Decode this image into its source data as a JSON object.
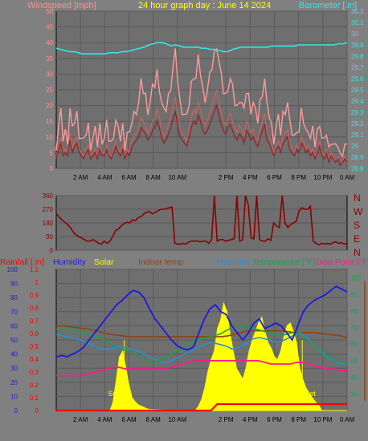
{
  "title": "24 hour graph day : June 14 2024",
  "colors": {
    "background": "#808080",
    "plot_bg": "#6f6f6f",
    "title": "#ffff00",
    "wind_label": "#ff9090",
    "wind_light": "#ff9a9a",
    "wind_mid": "#d06060",
    "wind_dark": "#8a2c2c",
    "baro": "#33e6e6",
    "winddir": "#8b0000",
    "rain": "#ff0000",
    "humidity": "#1a1ae6",
    "solar": "#ffff00",
    "indoor": "#8b4513",
    "humidex": "#2a8fd6",
    "temperature": "#16a34a",
    "dewpoint": "#ff1a8c",
    "grid": "#5a5a5a"
  },
  "x_ticks": [
    "2 AM",
    "4 AM",
    "6 AM",
    "8 AM",
    "10 AM",
    "2 PM",
    "4 PM",
    "6 PM",
    "8 PM",
    "10 PM",
    "0 AM"
  ],
  "chart_data": [
    {
      "type": "line",
      "title": "",
      "series": [
        {
          "name": "Windspeed [mph]",
          "axis": "left",
          "values": [
            3,
            6,
            8,
            4,
            5,
            4,
            9,
            5,
            7,
            8,
            5,
            4,
            3,
            5,
            6,
            3,
            4,
            5,
            3,
            6,
            4,
            4,
            6,
            4,
            3,
            5,
            7,
            5,
            4,
            6,
            3,
            5,
            4,
            7,
            8,
            9,
            10,
            13,
            12,
            11,
            9,
            10,
            12,
            13,
            15,
            13,
            10,
            8,
            9,
            11,
            13,
            16,
            18,
            14,
            10,
            9,
            8,
            7,
            10,
            13,
            15,
            14,
            17,
            15,
            12,
            11,
            12,
            14,
            16,
            18,
            20,
            17,
            14,
            12,
            11,
            13,
            14,
            12,
            10,
            9,
            11,
            10,
            8,
            12,
            11,
            9,
            10,
            8,
            7,
            10,
            12,
            14,
            9,
            8,
            6,
            4,
            6,
            7,
            5,
            8,
            9,
            10,
            6,
            5,
            4,
            6,
            5,
            8,
            7,
            5,
            6,
            4,
            5,
            3,
            5,
            7,
            4,
            3,
            5,
            2,
            4,
            3,
            2,
            3,
            1,
            2,
            3,
            2
          ]
        },
        {
          "name": "Barometer [.in]",
          "axis": "right",
          "values": [
            29.87,
            29.86,
            29.85,
            29.84,
            29.84,
            29.83,
            29.82,
            29.82,
            29.82,
            29.82,
            29.82,
            29.82,
            29.83,
            29.83,
            29.83,
            29.84,
            29.84,
            29.85,
            29.86,
            29.87,
            29.88,
            29.9,
            29.91,
            29.92,
            29.92,
            29.91,
            29.89,
            29.9,
            29.89,
            29.88,
            29.88,
            29.88,
            29.88,
            29.87,
            29.87,
            29.86,
            29.86,
            29.85,
            29.84,
            29.84,
            29.86,
            29.87,
            29.88,
            29.88,
            29.88,
            29.88,
            29.88,
            29.88,
            29.88,
            29.89,
            29.89,
            29.89,
            29.89,
            29.89,
            29.89,
            29.9,
            29.9,
            29.9,
            29.9,
            29.9,
            29.9,
            29.9,
            29.9,
            29.9,
            29.91,
            29.91,
            29.92
          ]
        }
      ],
      "ylabel_left": "Windspeed [mph]",
      "ylabel_right": "Barometer [.in]",
      "ylim_left": [
        0,
        50
      ],
      "ylim_right": [
        28.8,
        30.2
      ]
    },
    {
      "type": "line",
      "title": "",
      "series": [
        {
          "name": "Wind direction",
          "values": [
            240,
            220,
            200,
            185,
            170,
            150,
            120,
            100,
            90,
            80,
            70,
            60,
            60,
            70,
            60,
            45,
            40,
            60,
            45,
            60,
            90,
            130,
            140,
            160,
            175,
            185,
            180,
            200,
            195,
            215,
            220,
            240,
            250,
            255,
            240,
            250,
            260,
            270,
            270,
            275,
            280,
            285,
            45,
            40,
            40,
            45,
            40,
            55,
            60,
            60,
            60,
            55,
            60,
            60,
            45,
            70,
            360,
            60,
            70,
            70,
            60,
            65,
            70,
            75,
            360,
            60,
            70,
            360,
            300,
            80,
            75,
            360,
            70,
            60,
            60,
            75,
            65,
            180,
            160,
            150,
            360,
            180,
            150,
            170,
            180,
            190,
            260,
            280,
            270,
            270,
            290,
            60,
            45,
            35,
            45,
            40,
            45,
            40,
            50,
            55,
            45,
            50,
            40,
            45
          ]
        }
      ],
      "y_ticks": [
        "360",
        "270",
        "180",
        "90",
        "0"
      ],
      "compass": [
        "N",
        "W",
        "S",
        "E",
        "N"
      ],
      "ylim": [
        0,
        360
      ]
    },
    {
      "type": "line",
      "title": "",
      "series": [
        {
          "name": "Rainfall [.in]",
          "values": [
            0,
            0,
            0,
            0,
            0,
            0,
            0,
            0,
            0,
            0,
            0,
            0,
            0,
            0,
            0,
            0,
            0,
            0,
            0,
            0,
            0,
            0,
            0,
            0,
            0,
            0,
            0.05,
            0.05,
            0.05,
            0.05,
            0.05,
            0.05,
            0.05,
            0.05,
            0.05,
            0.05,
            0.05,
            0.05,
            0.05,
            0.05,
            0.05,
            0.05,
            0.05,
            0.05,
            0.05,
            0.05,
            0.05,
            0.05
          ]
        },
        {
          "name": "Humidity",
          "values": [
            38,
            39,
            38,
            40,
            42,
            45,
            50,
            55,
            60,
            65,
            70,
            75,
            78,
            82,
            85,
            84,
            80,
            72,
            65,
            60,
            55,
            50,
            46,
            44,
            43,
            45,
            55,
            65,
            72,
            75,
            70,
            68,
            60,
            55,
            50,
            55,
            62,
            65,
            58,
            60,
            62,
            60,
            55,
            50,
            60,
            70,
            75,
            78,
            80,
            82,
            85,
            88,
            86,
            84
          ]
        },
        {
          "name": "Solar",
          "values": [
            0,
            0,
            0,
            0,
            0,
            0,
            0,
            0,
            0,
            0,
            0,
            0,
            0,
            0,
            0,
            0,
            0,
            0,
            60,
            220,
            380,
            420,
            300,
            180,
            90,
            60,
            40,
            30,
            20,
            10,
            8,
            6,
            5,
            4,
            3,
            0,
            0,
            0,
            0,
            0,
            0,
            0,
            0,
            0,
            0,
            30,
            80,
            160,
            280,
            360,
            420,
            580,
            640,
            760,
            700,
            540,
            420,
            300,
            260,
            220,
            300,
            420,
            500,
            560,
            620,
            660,
            560,
            480,
            440,
            380,
            360,
            420,
            520,
            600,
            620,
            560,
            480,
            300,
            220,
            160,
            120,
            90,
            60,
            40,
            0,
            0,
            0,
            0,
            0,
            0,
            0,
            0,
            0
          ]
        },
        {
          "name": "Indoor temp",
          "values": [
            71,
            71,
            70.5,
            70,
            69.5,
            69,
            68,
            67,
            66,
            65.5,
            65,
            64.5,
            64.5,
            64.5,
            64.5,
            64.5,
            64.5,
            64.5,
            64.5,
            64.5,
            64.5,
            64.5,
            64.5,
            64.5,
            64.5,
            64.5,
            65,
            66,
            67,
            68,
            68,
            68,
            68,
            68,
            68,
            67.5,
            67,
            67,
            67,
            67,
            66.5,
            66,
            65.5,
            65,
            64
          ]
        },
        {
          "name": "Humidex",
          "values": [
            66,
            65,
            64,
            63,
            62,
            60,
            58,
            57,
            57,
            58,
            58,
            57,
            56,
            54,
            52,
            50,
            49,
            50,
            52,
            54,
            56,
            58,
            60,
            61,
            60,
            59,
            57,
            58,
            60,
            63,
            64,
            63,
            62,
            61,
            63,
            65,
            67,
            64,
            60,
            56,
            52,
            50,
            48,
            48
          ]
        },
        {
          "name": "Temperature [°F]",
          "values": [
            69,
            69,
            69,
            68,
            67,
            66,
            65,
            64,
            62,
            60,
            58,
            57,
            56,
            54,
            52,
            50,
            49,
            50,
            52,
            54,
            56,
            58,
            60,
            62,
            63,
            64,
            65,
            66,
            68,
            70,
            71,
            71,
            70,
            69,
            68,
            67,
            66,
            65,
            66,
            67,
            66,
            64,
            61,
            58,
            55,
            52,
            50,
            49,
            48
          ]
        },
        {
          "name": "Dew Point [°F]",
          "values": [
            41,
            41,
            41,
            41,
            41,
            42,
            43,
            44,
            45,
            46,
            46,
            45,
            45,
            45,
            45,
            45,
            45,
            45,
            46,
            47,
            48,
            49,
            50,
            50,
            50,
            50,
            50,
            50,
            50,
            50,
            50,
            50,
            50,
            49,
            48,
            48,
            48,
            48,
            49,
            49,
            48,
            47,
            46,
            45,
            45,
            44,
            44
          ]
        }
      ],
      "left_ticks_rain": [
        "1.1",
        "1",
        "0.9",
        "0.8",
        "0.7",
        "0.6",
        "0.5",
        "0.4",
        "0.3",
        "0.2",
        "0.1",
        "0"
      ],
      "left_ticks_pct": [
        "100",
        "90",
        "80",
        "70",
        "60",
        "50",
        "40",
        "30",
        "20",
        "10",
        "0"
      ],
      "right_ticks_temp": [
        "100",
        "90",
        "80",
        "70",
        "60",
        "50",
        "40",
        "30"
      ],
      "sun_label": "Sun",
      "set_label": "Set",
      "legend": [
        "Rainfall [.in]",
        "Humidity",
        "Solar",
        "Indoor temp",
        "Humidex",
        "Temperature [°F]",
        "Dew Point [°F]"
      ],
      "ylim_rain": [
        0,
        1.1
      ],
      "ylim_pct": [
        0,
        100
      ],
      "ylim_temp": [
        20,
        105
      ]
    }
  ],
  "wind_ticks": [
    "50",
    "45",
    "40",
    "35",
    "30",
    "25",
    "20",
    "15",
    "10",
    "5",
    "0"
  ],
  "baro_ticks": [
    "30.2",
    "30.1",
    "30",
    "29.9",
    "29.8",
    "29.7",
    "29.6",
    "29.5",
    "29.4",
    "29.3",
    "29.2",
    "29.1",
    "29",
    "28.9",
    "28.8"
  ]
}
